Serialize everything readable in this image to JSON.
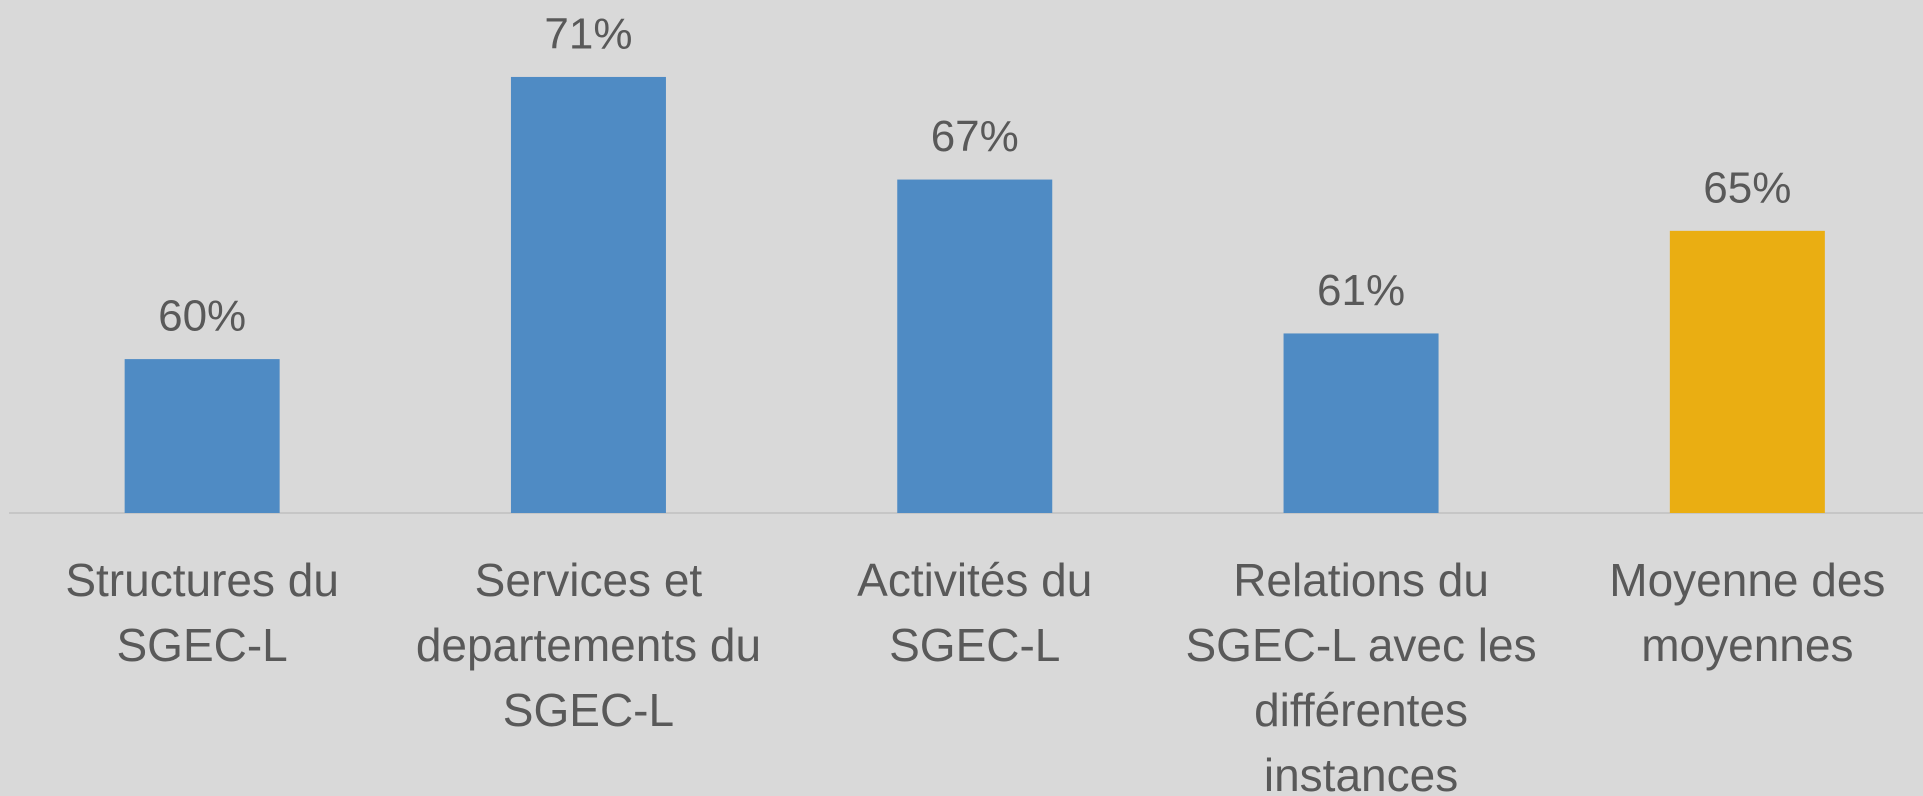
{
  "chart_data": {
    "type": "bar",
    "categories": [
      "Structures du SGEC-L",
      "Services et departements du SGEC-L",
      "Activités du SGEC-L",
      "Relations du SGEC-L avec les différentes instances",
      "Moyenne des moyennes"
    ],
    "values": [
      60,
      71,
      67,
      61,
      65
    ],
    "value_labels": [
      "60%",
      "71%",
      "67%",
      "61%",
      "65%"
    ],
    "colors": [
      "#4f8bc4",
      "#4f8bc4",
      "#4f8bc4",
      "#4f8bc4",
      "#eaae12"
    ],
    "ylim": [
      54,
      74
    ]
  }
}
